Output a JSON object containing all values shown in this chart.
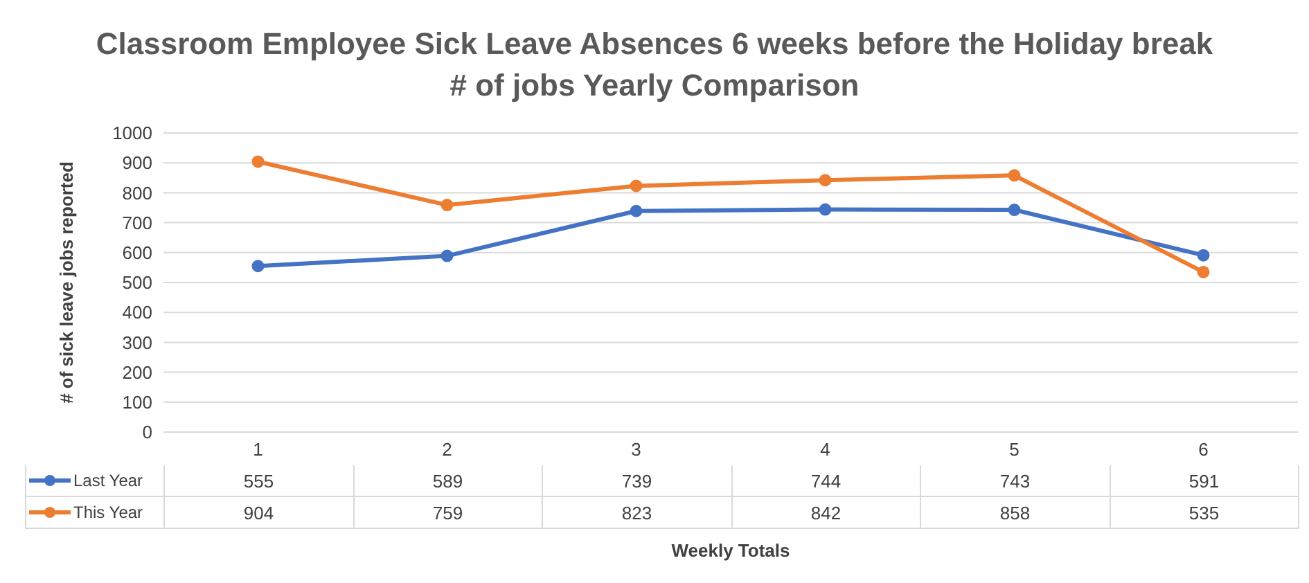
{
  "chart_data": {
    "type": "line",
    "title": "Classroom Employee Sick Leave Absences 6 weeks before the Holiday break # of jobs Yearly Comparison",
    "xlabel": "Weekly Totals",
    "ylabel": "# of sick leave jobs reported",
    "categories": [
      "1",
      "2",
      "3",
      "4",
      "5",
      "6"
    ],
    "series": [
      {
        "name": "Last Year",
        "color": "#4472c4",
        "values": [
          555,
          589,
          739,
          744,
          743,
          591
        ]
      },
      {
        "name": "This Year",
        "color": "#ed7d31",
        "values": [
          904,
          759,
          823,
          842,
          858,
          535
        ]
      }
    ],
    "ylim": [
      0,
      1000
    ],
    "yticks": [
      0,
      100,
      200,
      300,
      400,
      500,
      600,
      700,
      800,
      900,
      1000
    ],
    "grid": "y",
    "legend": "bottom",
    "marker": "circle",
    "line_style": "solid",
    "data_labels": true
  }
}
